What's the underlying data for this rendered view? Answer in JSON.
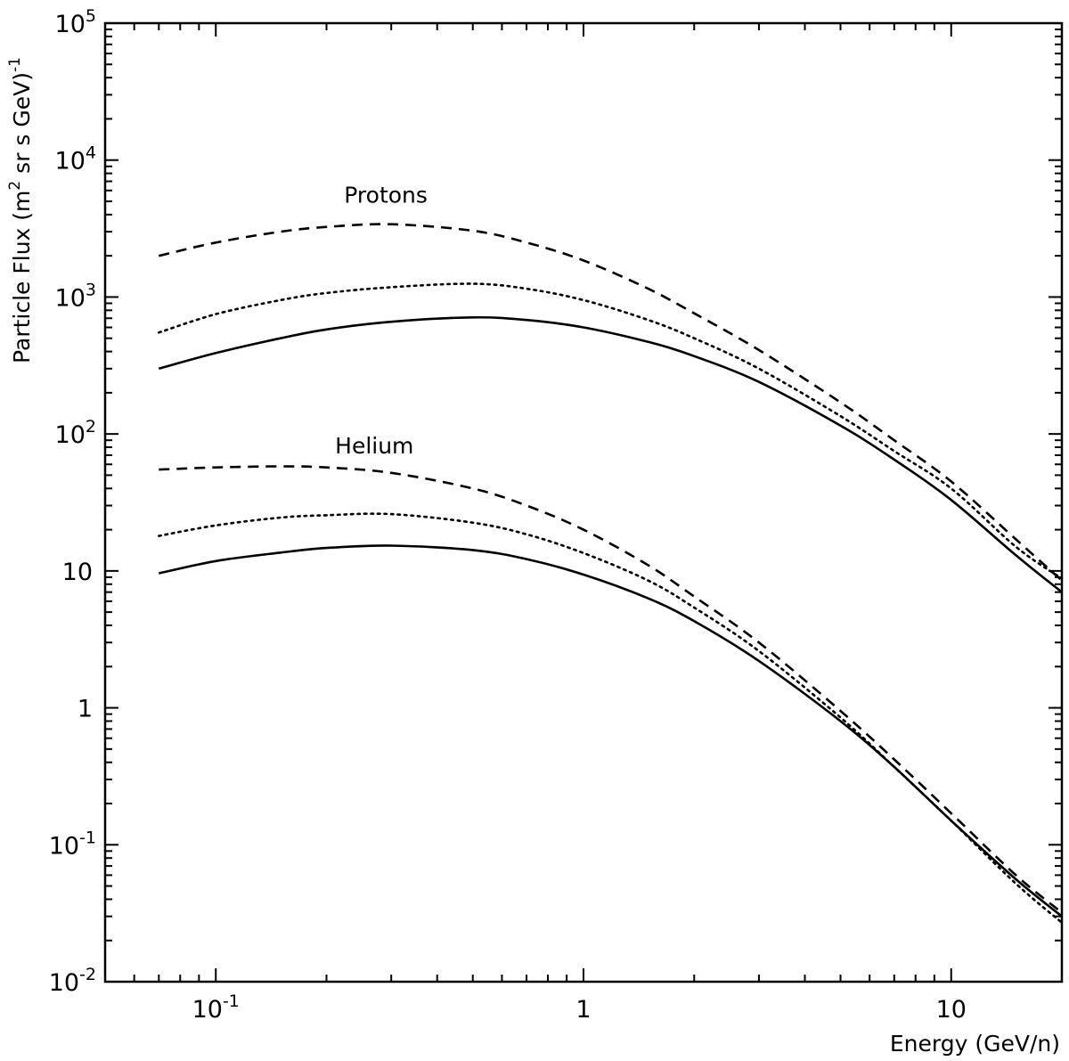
{
  "chart_data": {
    "type": "line",
    "title": "",
    "xlabel": "Energy (GeV/n)",
    "ylabel": {
      "base": "Particle Flux (m",
      "sup1": "2",
      "mid": " sr s GeV)",
      "sup2": "-1"
    },
    "x_scale": "log",
    "y_scale": "log",
    "xlim": [
      0.05,
      20
    ],
    "ylim": [
      0.01,
      100000
    ],
    "grid": false,
    "x_ticks": [
      {
        "value": 0.1,
        "base": "10",
        "exp": "-1"
      },
      {
        "value": 1,
        "base": "1",
        "exp": ""
      },
      {
        "value": 10,
        "base": "10",
        "exp": ""
      }
    ],
    "y_ticks": [
      {
        "value": 0.01,
        "base": "10",
        "exp": "-2"
      },
      {
        "value": 0.1,
        "base": "10",
        "exp": "-1"
      },
      {
        "value": 1,
        "base": "1",
        "exp": ""
      },
      {
        "value": 10,
        "base": "10",
        "exp": ""
      },
      {
        "value": 100,
        "base": "10",
        "exp": "2"
      },
      {
        "value": 1000,
        "base": "10",
        "exp": "3"
      },
      {
        "value": 10000,
        "base": "10",
        "exp": "4"
      },
      {
        "value": 100000,
        "base": "10",
        "exp": "5"
      }
    ],
    "annotations": [
      {
        "text": "Protons",
        "x": 0.29,
        "y": 4900
      },
      {
        "text": "Helium",
        "x": 0.27,
        "y": 72
      }
    ],
    "series": [
      {
        "name": "Protons (dashed)",
        "group": "Protons",
        "style": "dashed",
        "x": [
          0.07,
          0.1,
          0.15,
          0.2,
          0.3,
          0.5,
          0.7,
          1,
          1.5,
          2,
          3,
          5,
          7,
          10,
          15,
          20
        ],
        "y": [
          2000,
          2500,
          3000,
          3250,
          3400,
          3050,
          2500,
          1850,
          1150,
          760,
          410,
          170,
          90,
          45,
          17,
          8.5
        ]
      },
      {
        "name": "Protons (dotted)",
        "group": "Protons",
        "style": "dotted",
        "x": [
          0.07,
          0.1,
          0.15,
          0.2,
          0.3,
          0.5,
          0.7,
          1,
          1.5,
          2,
          3,
          5,
          7,
          10,
          15,
          20
        ],
        "y": [
          550,
          750,
          950,
          1070,
          1180,
          1250,
          1150,
          950,
          680,
          500,
          300,
          135,
          75,
          40,
          15,
          8.8
        ]
      },
      {
        "name": "Protons (solid)",
        "group": "Protons",
        "style": "solid",
        "x": [
          0.07,
          0.1,
          0.15,
          0.2,
          0.3,
          0.5,
          0.7,
          1,
          1.5,
          2,
          3,
          5,
          7,
          10,
          15,
          20
        ],
        "y": [
          300,
          390,
          500,
          580,
          660,
          710,
          680,
          600,
          470,
          370,
          240,
          115,
          65,
          33,
          13,
          7
        ]
      },
      {
        "name": "Helium (dashed)",
        "group": "Helium",
        "style": "dashed",
        "x": [
          0.07,
          0.1,
          0.15,
          0.2,
          0.3,
          0.5,
          0.7,
          1,
          1.5,
          2,
          3,
          5,
          7,
          10,
          15,
          20
        ],
        "y": [
          55,
          57,
          58,
          57,
          52,
          40,
          30,
          20,
          11,
          6.5,
          3,
          0.95,
          0.42,
          0.17,
          0.06,
          0.032
        ]
      },
      {
        "name": "Helium (dotted)",
        "group": "Helium",
        "style": "dotted",
        "x": [
          0.07,
          0.1,
          0.15,
          0.2,
          0.3,
          0.5,
          0.7,
          1,
          1.5,
          2,
          3,
          5,
          7,
          10,
          15,
          20
        ],
        "y": [
          18,
          21.5,
          24.5,
          25.5,
          26,
          22.5,
          18.5,
          13.5,
          8.5,
          5.4,
          2.6,
          0.85,
          0.37,
          0.15,
          0.052,
          0.027
        ]
      },
      {
        "name": "Helium (solid)",
        "group": "Helium",
        "style": "solid",
        "x": [
          0.07,
          0.1,
          0.15,
          0.2,
          0.3,
          0.5,
          0.7,
          1,
          1.5,
          2,
          3,
          5,
          7,
          10,
          15,
          20
        ],
        "y": [
          9.6,
          11.8,
          13.6,
          14.7,
          15.3,
          14.2,
          12.2,
          9.4,
          6.3,
          4.3,
          2.2,
          0.8,
          0.37,
          0.15,
          0.056,
          0.03
        ]
      }
    ]
  }
}
